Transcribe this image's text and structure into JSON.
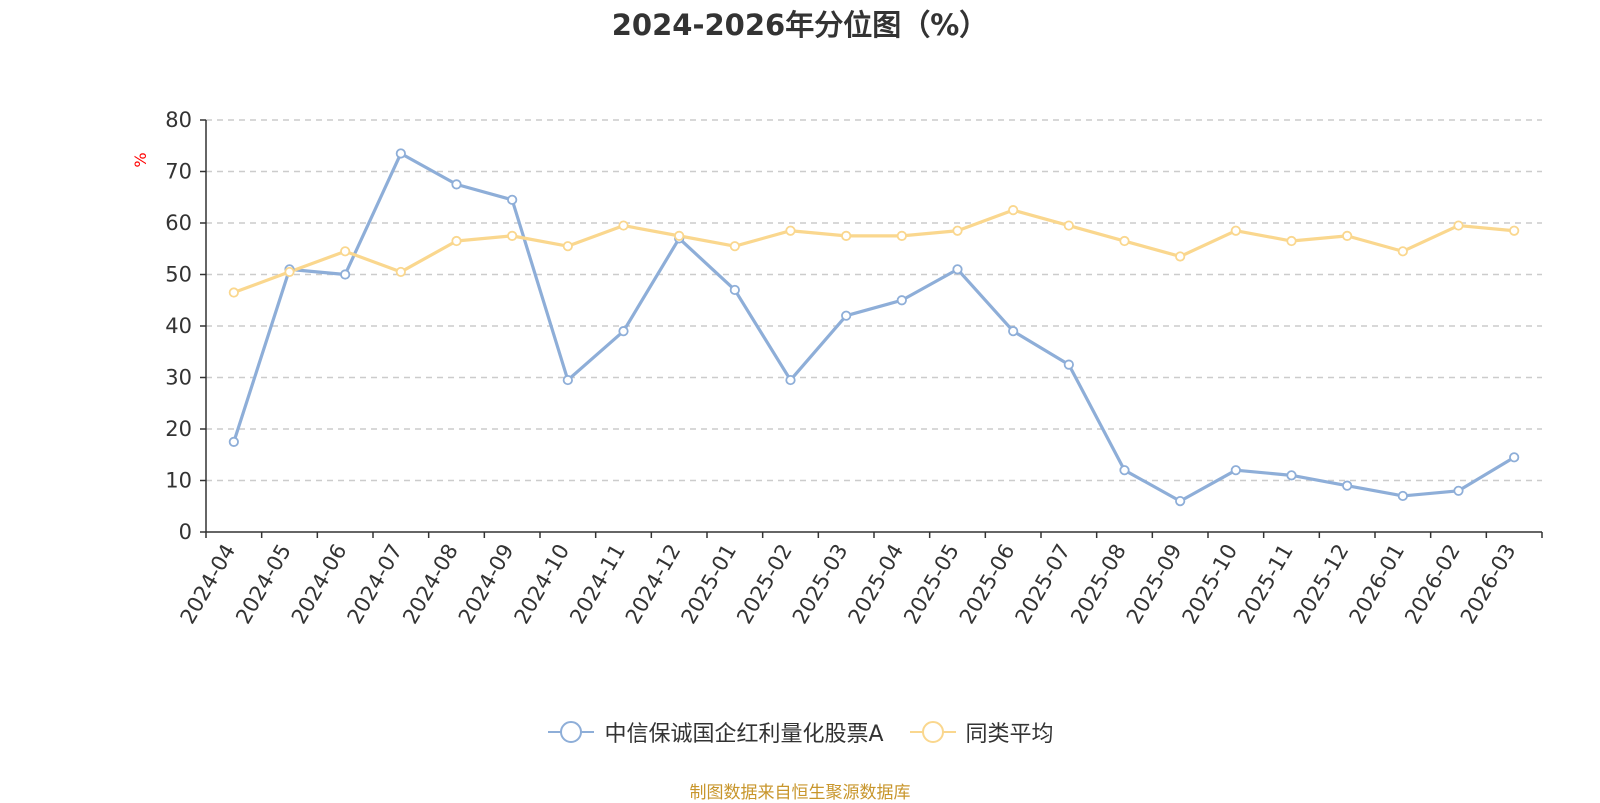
{
  "chart_data": {
    "type": "line",
    "title": "2024-2026年分位图（%）",
    "ylabel": "%",
    "xlabel": "",
    "ylim": [
      0,
      80
    ],
    "yticks": [
      0,
      10,
      20,
      30,
      40,
      50,
      60,
      70,
      80
    ],
    "grid": true,
    "categories": [
      "2024-04",
      "2024-05",
      "2024-06",
      "2024-07",
      "2024-08",
      "2024-09",
      "2024-10",
      "2024-11",
      "2024-12",
      "2025-01",
      "2025-02",
      "2025-03",
      "2025-04",
      "2025-05",
      "2025-06",
      "2025-07",
      "2025-08",
      "2025-09",
      "2025-10",
      "2025-11",
      "2025-12",
      "2026-01",
      "2026-02",
      "2026-03"
    ],
    "series": [
      {
        "name": "中信保诚国企红利量化股票A",
        "color": "#8eaed8",
        "values": [
          17.5,
          51,
          50,
          73.5,
          67.5,
          64.5,
          29.5,
          39,
          57,
          47,
          29.5,
          42,
          45,
          51,
          39,
          32.5,
          12,
          6,
          12,
          11,
          9,
          7,
          8,
          14.5
        ]
      },
      {
        "name": "同类平均",
        "color": "#fad78e",
        "values": [
          46.5,
          50.5,
          54.5,
          50.5,
          56.5,
          57.5,
          55.5,
          59.5,
          57.5,
          55.5,
          58.5,
          57.5,
          57.5,
          58.5,
          62.5,
          59.5,
          56.5,
          53.5,
          58.5,
          56.5,
          57.5,
          54.5,
          59.5,
          58.5
        ]
      }
    ],
    "legend_position": "bottom-center"
  },
  "source_note": "制图数据来自恒生聚源数据库"
}
